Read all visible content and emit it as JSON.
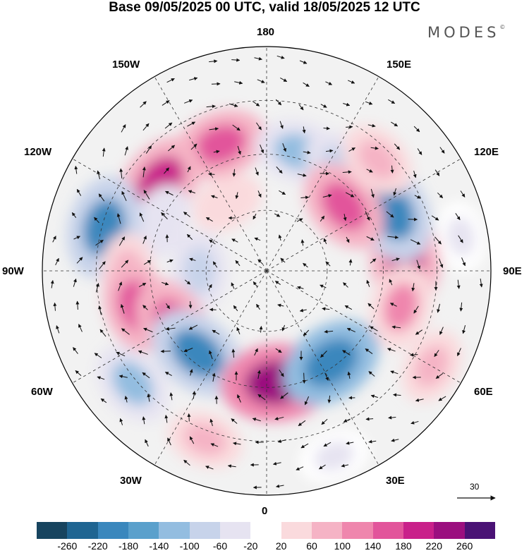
{
  "title": "Base 09/05/2025 00 UTC, valid 18/05/2025 12 UTC",
  "brand": {
    "text": "MODES",
    "mark": "©"
  },
  "longitude_labels": {
    "n180": "180",
    "e150": "150E",
    "w150": "150W",
    "e120": "120E",
    "w120": "120W",
    "e90": "90E",
    "w90": "90W",
    "e60": "60E",
    "w60": "60W",
    "e30": "30E",
    "w30": "30W",
    "s0": "0"
  },
  "reference_vector": {
    "label": "30",
    "icon": "arrow-right-icon"
  },
  "anomaly_cells": [
    {
      "lon": 200,
      "r": 0.6,
      "value": 150
    },
    {
      "lon": 230,
      "r": 0.62,
      "value": 180
    },
    {
      "lon": 165,
      "r": 0.55,
      "value": -120
    },
    {
      "lon": 145,
      "r": 0.58,
      "value": -80
    },
    {
      "lon": 245,
      "r": 0.52,
      "value": -60
    },
    {
      "lon": 255,
      "r": 0.75,
      "value": -200
    },
    {
      "lon": 310,
      "r": 0.78,
      "value": -110
    },
    {
      "lon": 270,
      "r": 0.3,
      "value": -80
    },
    {
      "lon": 270,
      "r": 0.62,
      "value": 60
    },
    {
      "lon": 285,
      "r": 0.6,
      "value": 140
    },
    {
      "lon": 300,
      "r": 0.48,
      "value": 160
    },
    {
      "lon": 320,
      "r": 0.48,
      "value": -200
    },
    {
      "lon": 5,
      "r": 0.5,
      "value": 240
    },
    {
      "lon": 35,
      "r": 0.5,
      "value": -210
    },
    {
      "lon": 95,
      "r": 0.62,
      "value": 190
    },
    {
      "lon": 75,
      "r": 0.62,
      "value": 110
    },
    {
      "lon": 115,
      "r": 0.62,
      "value": -200
    },
    {
      "lon": 130,
      "r": 0.45,
      "value": 160
    },
    {
      "lon": 135,
      "r": 0.7,
      "value": 80
    },
    {
      "lon": 60,
      "r": 0.85,
      "value": 60
    },
    {
      "lon": 20,
      "r": 0.88,
      "value": -40
    },
    {
      "lon": 340,
      "r": 0.8,
      "value": 60
    },
    {
      "lon": 210,
      "r": 0.35,
      "value": 40
    },
    {
      "lon": 100,
      "r": 0.88,
      "value": -30
    }
  ],
  "colorbar": {
    "colors": [
      "#17445f",
      "#1f6592",
      "#3a87bd",
      "#5aa0cc",
      "#93bde0",
      "#c7d3ea",
      "#e6e3f1",
      "#ffffff",
      "#fadadd",
      "#f5b3c5",
      "#ef86ad",
      "#e2559b",
      "#c9208a",
      "#9b0f7f",
      "#4a1275"
    ],
    "ticks": [
      "-260",
      "-220",
      "-180",
      "-140",
      "-100",
      "-60",
      "-20",
      "20",
      "60",
      "100",
      "140",
      "180",
      "220",
      "260"
    ]
  }
}
